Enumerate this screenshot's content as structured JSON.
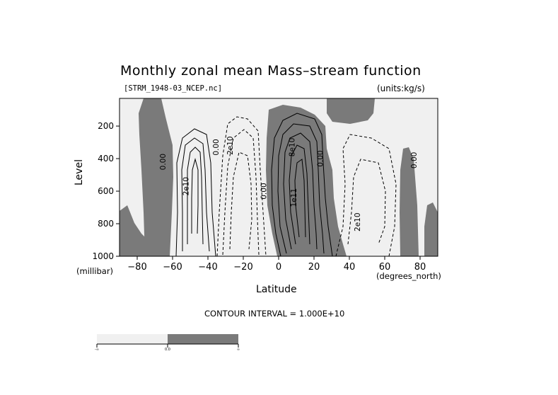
{
  "chart_data": {
    "type": "contour",
    "title": "Monthly zonal mean Mass–stream function",
    "file_label": "[STRM_1948-03_NCEP.nc]",
    "units_label": "(units:kg/s)",
    "xlabel": "Latitude",
    "x_unit_label": "(degrees_north)",
    "ylabel": "Level",
    "y_unit_label": "(millibar)",
    "xlim": [
      -90,
      90
    ],
    "ylim": [
      1000,
      30
    ],
    "x_ticks": [
      -80,
      -60,
      -40,
      -20,
      0,
      20,
      40,
      60,
      80
    ],
    "y_ticks": [
      200,
      400,
      600,
      800,
      1000
    ],
    "contour_interval_text": "CONTOUR INTERVAL = 1.000E+10",
    "contour_labels": [
      {
        "text": "0.00",
        "lat": -64,
        "lev": 420
      },
      {
        "text": "2e10",
        "lat": -51,
        "lev": 570
      },
      {
        "text": "0.00",
        "lat": -34,
        "lev": 330
      },
      {
        "text": "2e10",
        "lat": -26,
        "lev": 320
      },
      {
        "text": "0.00",
        "lat": -7,
        "lev": 600
      },
      {
        "text": "1e11",
        "lat": 10,
        "lev": 640
      },
      {
        "text": "8e10",
        "lat": 9,
        "lev": 330
      },
      {
        "text": "0.00",
        "lat": 25,
        "lev": 400
      },
      {
        "text": "2e10",
        "lat": 46,
        "lev": 790
      },
      {
        "text": "0.00",
        "lat": 78,
        "lev": 410
      }
    ],
    "legend": {
      "labels": [
        "-∞",
        "0.0",
        "∞"
      ],
      "colors": [
        "#f0f0f0",
        "#7a7a7a"
      ]
    },
    "colors": {
      "negative_fill": "#f0f0f0",
      "positive_fill": "#7a7a7a",
      "contour_line": "#000000"
    }
  }
}
